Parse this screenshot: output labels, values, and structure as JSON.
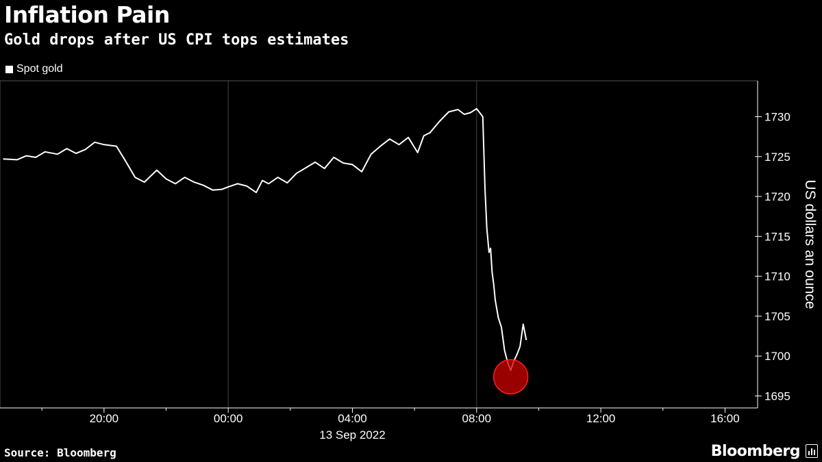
{
  "title": "Inflation Pain",
  "subtitle": "Gold drops after US CPI tops estimates",
  "source": "Source: Bloomberg",
  "brand": "Bloomberg",
  "colors": {
    "background": "#000000",
    "line": "#ffffff",
    "gridline": "#444444",
    "highlight": "#cc0000"
  },
  "icons": {
    "brand": "bar-chart-icon"
  },
  "chart_data": {
    "type": "line",
    "series": [
      {
        "name": "Spot gold",
        "x": [
          -7.25,
          -6.8,
          -6.5,
          -6.2,
          -5.9,
          -5.5,
          -5.2,
          -4.9,
          -4.6,
          -4.3,
          -4.0,
          -3.6,
          -3.3,
          -3.0,
          -2.7,
          -2.3,
          -2.0,
          -1.7,
          -1.4,
          -1.1,
          -0.8,
          -0.5,
          -0.2,
          0.0,
          0.3,
          0.6,
          0.9,
          1.1,
          1.3,
          1.6,
          1.9,
          2.2,
          2.5,
          2.8,
          3.1,
          3.4,
          3.7,
          4.0,
          4.3,
          4.6,
          4.9,
          5.2,
          5.5,
          5.8,
          6.1,
          6.3,
          6.5,
          6.8,
          7.1,
          7.4,
          7.6,
          7.8,
          8.0,
          8.2,
          8.27,
          8.33,
          8.4,
          8.45,
          8.5,
          8.55,
          8.6,
          8.7,
          8.8,
          8.9,
          9.0,
          9.1,
          9.2,
          9.3,
          9.4,
          9.5,
          9.6
        ],
        "values": [
          1724.7,
          1724.6,
          1725.1,
          1724.9,
          1725.6,
          1725.3,
          1726.0,
          1725.4,
          1725.9,
          1726.8,
          1726.5,
          1726.3,
          1724.4,
          1722.4,
          1721.8,
          1723.3,
          1722.2,
          1721.6,
          1722.4,
          1721.8,
          1721.4,
          1720.8,
          1720.9,
          1721.2,
          1721.6,
          1721.3,
          1720.5,
          1722.0,
          1721.6,
          1722.4,
          1721.7,
          1722.9,
          1723.6,
          1724.3,
          1723.5,
          1724.9,
          1724.2,
          1724.0,
          1723.1,
          1725.3,
          1726.3,
          1727.2,
          1726.5,
          1727.4,
          1725.5,
          1727.6,
          1728.0,
          1729.4,
          1730.6,
          1730.9,
          1730.3,
          1730.5,
          1731.0,
          1730.0,
          1721.0,
          1716.0,
          1713.0,
          1713.5,
          1710.5,
          1709.0,
          1707.0,
          1704.8,
          1703.6,
          1700.7,
          1699.2,
          1698.2,
          1699.4,
          1700.2,
          1701.2,
          1704.0,
          1702.0
        ]
      }
    ],
    "x_ticks": [
      {
        "value": -4,
        "label": "20:00"
      },
      {
        "value": 0,
        "label": "00:00"
      },
      {
        "value": 4,
        "label": "04:00"
      },
      {
        "value": 8,
        "label": "08:00"
      },
      {
        "value": 12,
        "label": "12:00"
      },
      {
        "value": 16,
        "label": "16:00"
      }
    ],
    "x_minor_ticks": [
      -6,
      -2,
      2,
      6,
      10,
      14
    ],
    "xlim": [
      -7.35,
      17.05
    ],
    "date_label": "13 Sep 2022",
    "y_ticks": [
      1695,
      1700,
      1705,
      1710,
      1715,
      1720,
      1725,
      1730
    ],
    "ylim": [
      1693.5,
      1734.5
    ],
    "ylabel": "US dollars an ounce",
    "vertical_gridlines_at": [
      0,
      8
    ],
    "highlight": {
      "x": 9.1,
      "y": 1697.4
    },
    "legend_position": "top-left"
  }
}
